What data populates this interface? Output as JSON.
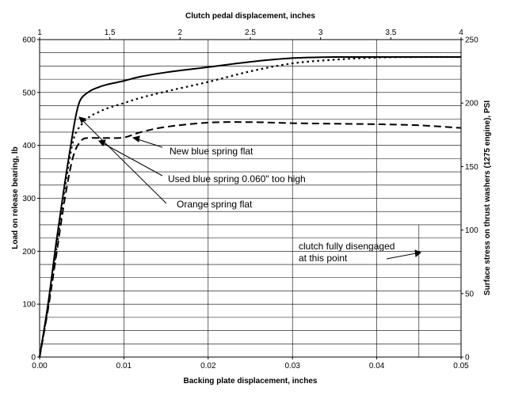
{
  "chart_data": {
    "type": "line",
    "title": "",
    "xlabel": "Backing plate displacement, inches",
    "x2label": "Clutch pedal displacement, inches",
    "ylabel": "Load on release bearing, lb",
    "y2label": "Surface stress on thrust washers (1275 engine), PSI",
    "xlim": [
      0,
      0.05
    ],
    "ylim": [
      0,
      600
    ],
    "x2lim": [
      1,
      4
    ],
    "y2lim": [
      0,
      250
    ],
    "x_ticks": [
      "0.00",
      "0.01",
      "0.02",
      "0.03",
      "0.04",
      "0.05"
    ],
    "y_ticks": [
      "0",
      "100",
      "200",
      "300",
      "400",
      "500",
      "600"
    ],
    "x2_ticks": [
      "1",
      "1.5",
      "2",
      "2.5",
      "3",
      "3.5",
      "4"
    ],
    "y2_ticks": [
      "0",
      "50",
      "100",
      "150",
      "200",
      "250"
    ],
    "grid": true,
    "legend": "none",
    "series": [
      {
        "style": "solid",
        "x": [
          0,
          0.001,
          0.002,
          0.003,
          0.004,
          0.0045,
          0.005,
          0.006,
          0.007,
          0.008,
          0.01,
          0.012,
          0.015,
          0.02,
          0.025,
          0.03,
          0.035,
          0.04,
          0.05
        ],
        "y": [
          0,
          100,
          220,
          330,
          430,
          470,
          490,
          503,
          510,
          515,
          522,
          530,
          538,
          548,
          558,
          565,
          567,
          567,
          567
        ]
      },
      {
        "style": "dotted",
        "x": [
          0,
          0.001,
          0.002,
          0.003,
          0.004,
          0.005,
          0.006,
          0.007,
          0.008,
          0.01,
          0.012,
          0.015,
          0.02,
          0.025,
          0.03,
          0.035,
          0.04,
          0.045,
          0.05
        ],
        "y": [
          0,
          95,
          205,
          320,
          410,
          440,
          455,
          463,
          470,
          480,
          490,
          502,
          520,
          540,
          555,
          562,
          566,
          567,
          567
        ]
      },
      {
        "style": "dashed",
        "x": [
          0,
          0.001,
          0.002,
          0.003,
          0.004,
          0.005,
          0.006,
          0.007,
          0.008,
          0.01,
          0.012,
          0.015,
          0.02,
          0.025,
          0.03,
          0.035,
          0.04,
          0.045,
          0.05
        ],
        "y": [
          0,
          90,
          195,
          300,
          380,
          410,
          414,
          414,
          414,
          415,
          425,
          435,
          443,
          444,
          442,
          441,
          440,
          438,
          433
        ]
      }
    ],
    "annotations": [
      {
        "text": "New blue spring flat"
      },
      {
        "text": "Used blue spring 0.060\" too high"
      },
      {
        "text": "Orange spring flat"
      },
      {
        "text": "clutch fully disengaged"
      },
      {
        "text": "at this point"
      }
    ]
  }
}
